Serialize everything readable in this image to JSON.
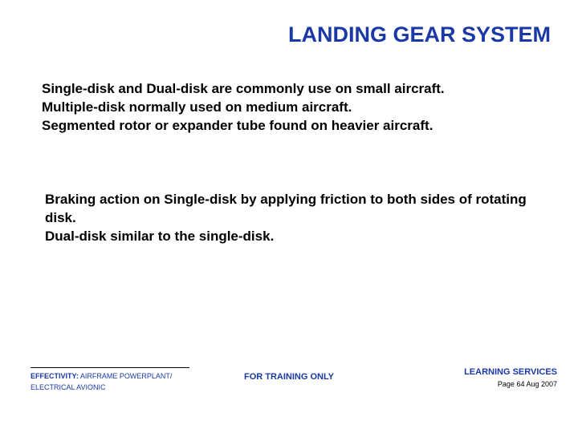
{
  "title": {
    "text": "LANDING GEAR SYSTEM",
    "color": "#1a39a6",
    "fontsize": 27
  },
  "body": {
    "color": "#000000",
    "fontsize": 17,
    "para1_lines": [
      "Single-disk and Dual-disk are commonly use on small aircraft.",
      "Multiple-disk normally used on medium aircraft.",
      "Segmented rotor or expander tube found on heavier aircraft."
    ],
    "para2_lines": [
      "Braking action on Single-disk by applying friction to both sides of rotating disk.",
      "Dual-disk similar to the single-disk."
    ]
  },
  "footer": {
    "effectivity_label": "EFFECTIVITY:",
    "effectivity_value": " AIRFRAME POWERPLANT/",
    "effectivity_line2": "ELECTRICAL AVIONIC",
    "effectivity_color": "#1a39a6",
    "effectivity_fontsize": 9,
    "center_text": "FOR TRAINING ONLY",
    "center_color": "#1a39a6",
    "center_fontsize": 11,
    "right_line1": "LEARNING SERVICES",
    "right_line1_color": "#1a39a6",
    "right_line1_fontsize": 11,
    "right_line2": "Page 64 Aug 2007",
    "right_line2_color": "#000000",
    "right_line2_fontsize": 9
  },
  "background_color": "#ffffff"
}
